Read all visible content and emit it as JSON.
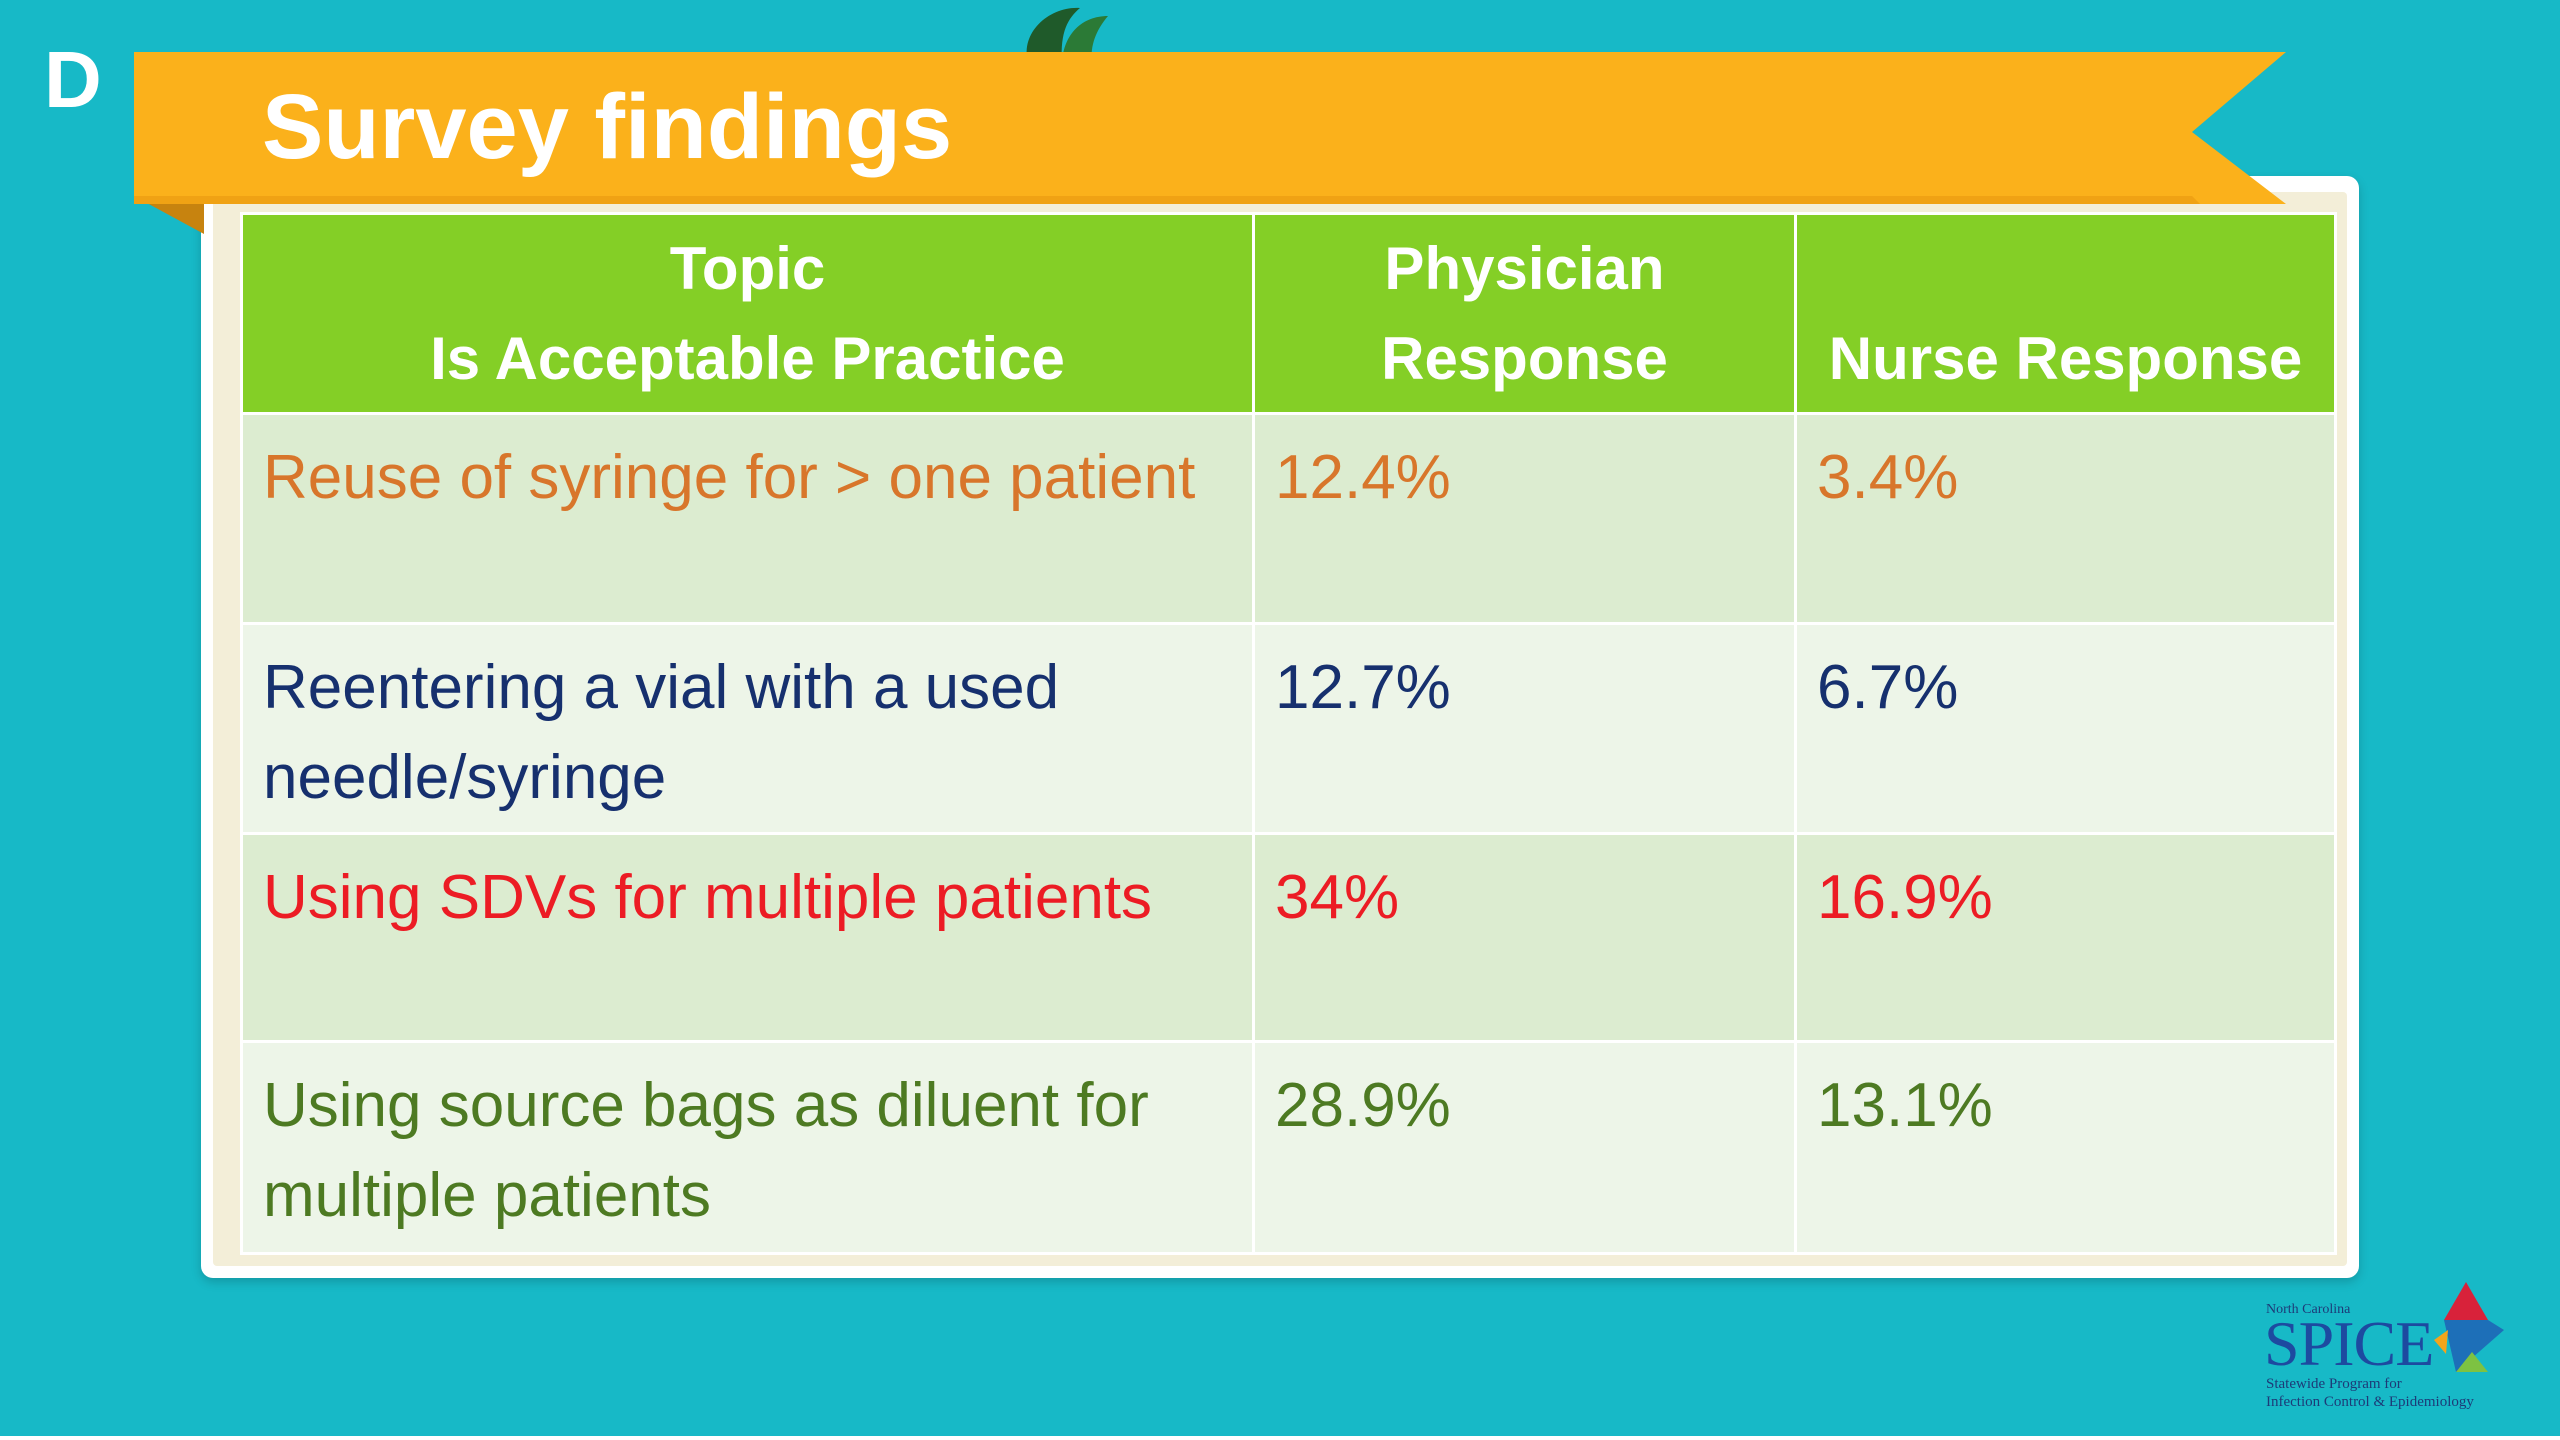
{
  "slide": {
    "letter": "D",
    "title": "Survey findings",
    "colors": {
      "background": "#17b9c7",
      "banner": "#fbb11b",
      "header": "#84cf26",
      "row_odd": "#dcecd0",
      "row_even": "#edf5e8"
    }
  },
  "table": {
    "headers": [
      {
        "line1": "Topic",
        "line2": "Is Acceptable Practice"
      },
      {
        "line1": "Physician",
        "line2": "Response"
      },
      {
        "line1": "",
        "line2": "Nurse Response"
      }
    ],
    "rows": [
      {
        "topic": "Reuse of syringe for > one patient",
        "physician": "12.4%",
        "nurse": "3.4%",
        "color": "#d8762b"
      },
      {
        "topic": "Reentering a vial with a used needle/syringe",
        "physician": "12.7%",
        "nurse": "6.7%",
        "color": "#16306e"
      },
      {
        "topic": "Using SDVs for multiple patients",
        "physician": "34%",
        "nurse": "16.9%",
        "color": "#ec1c24"
      },
      {
        "topic": "Using source bags as diluent for multiple patients",
        "physician": "28.9%",
        "nurse": "13.1%",
        "color": "#4d7a22"
      }
    ]
  },
  "logo": {
    "top_text": "North Carolina",
    "name": "SPICE",
    "subtitle_line1": "Statewide Program for",
    "subtitle_line2": "Infection Control & Epidemiology"
  }
}
